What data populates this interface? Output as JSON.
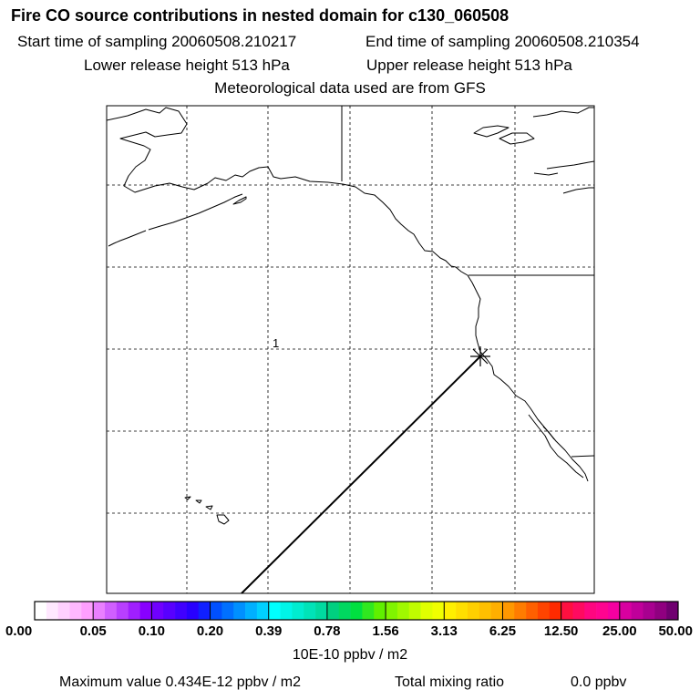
{
  "header": {
    "title": "Fire CO source contributions in nested domain for c130_060508",
    "start": "Start time of sampling 20060508.210217",
    "end": "End time of sampling 20060508.210354",
    "lower": "Lower release height  513 hPa",
    "upper": "Upper release height  513 hPa",
    "met": "Meteorological data used are from GFS"
  },
  "map": {
    "receptor_label": "1"
  },
  "colorbar": {
    "tick_labels": [
      "0.00",
      "0.05",
      "0.10",
      "0.20",
      "0.39",
      "0.78",
      "1.56",
      "3.13",
      "6.25",
      "12.50",
      "25.00",
      "50.00"
    ],
    "colors": [
      [
        "#ffffff",
        "#ffe8ff",
        "#ffd0ff",
        "#ffb8ff",
        "#ff9fff"
      ],
      [
        "#e97fff",
        "#d05fff",
        "#b83fff",
        "#a01fff",
        "#8800ff"
      ],
      [
        "#7000ff",
        "#5800ff",
        "#4000ff",
        "#2800ff",
        "#1020ff"
      ],
      [
        "#0050ff",
        "#0070ff",
        "#0090ff",
        "#00b0ff",
        "#00d0ff"
      ],
      [
        "#00ffff",
        "#00f5e8",
        "#00ecd0",
        "#00e3b8",
        "#00daa0"
      ],
      [
        "#00d080",
        "#00d860",
        "#00e040",
        "#30e820",
        "#60f000"
      ],
      [
        "#80f400",
        "#a0f800",
        "#c0fc00",
        "#e0ff00",
        "#f0ff00"
      ],
      [
        "#ffef00",
        "#ffdf00",
        "#ffcf00",
        "#ffbf00",
        "#ffaf00"
      ],
      [
        "#ff9800",
        "#ff7c00",
        "#ff6000",
        "#ff4400",
        "#ff2a00"
      ],
      [
        "#ff1040",
        "#ff0a60",
        "#ff0680",
        "#ff0490",
        "#f500a0"
      ],
      [
        "#d800a0",
        "#c0009a",
        "#a80090",
        "#900080",
        "#700070"
      ]
    ],
    "units": "10E-10 ppbv / m2"
  },
  "footer": {
    "max_value": "Maximum value  0.434E-12 ppbv / m2",
    "total_label": "Total mixing ratio",
    "total_value": "0.0 ppbv"
  }
}
